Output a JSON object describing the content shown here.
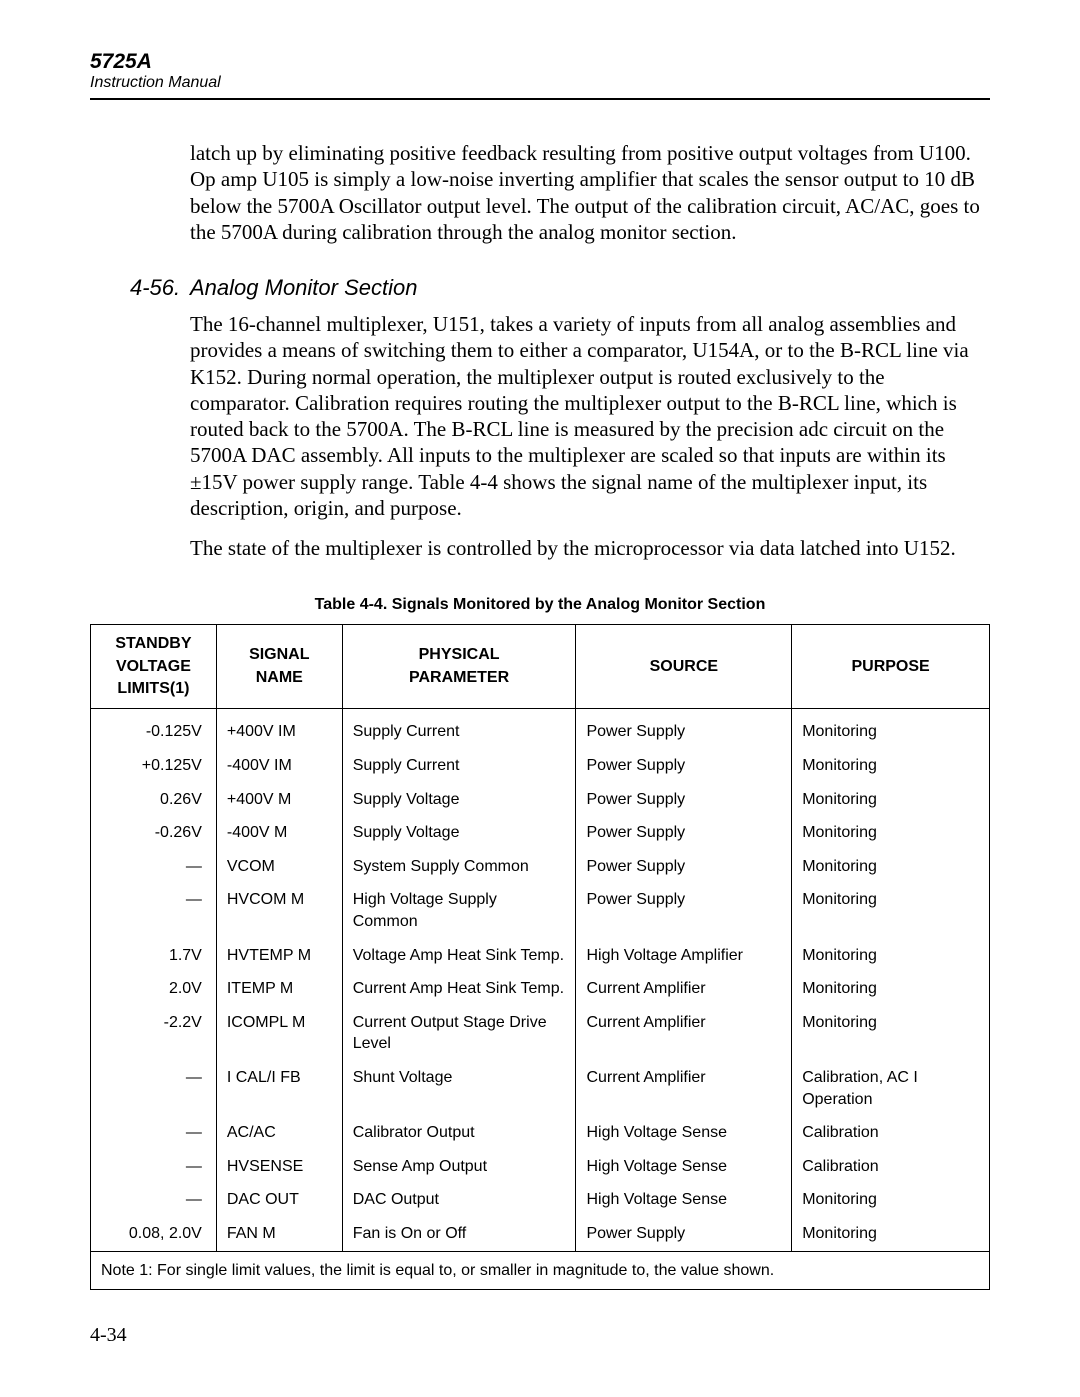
{
  "header": {
    "model": "5725A",
    "manual": "Instruction Manual"
  },
  "intro_para": "latch up by eliminating positive feedback resulting from positive output voltages from U100. Op amp U105 is simply a low-noise inverting amplifier that scales the sensor output to 10 dB below the 5700A Oscillator output level. The output of the calibration circuit, AC/AC, goes to the 5700A during calibration through the analog monitor section.",
  "section": {
    "number": "4-56.",
    "title": "Analog Monitor Section",
    "para1": "The 16-channel multiplexer, U151, takes a variety of inputs from all analog assemblies and provides a means of switching them to either a comparator, U154A, or to the B-RCL line via K152. During normal operation, the multiplexer output is routed exclusively to the comparator. Calibration requires routing the multiplexer output to the B-RCL line, which is routed back to the 5700A. The B-RCL line is measured by the precision adc circuit on the 5700A DAC assembly. All inputs to the multiplexer are scaled so that inputs are within its ±15V power supply range. Table 4-4 shows the signal name of the multiplexer input, its description, origin, and purpose.",
    "para2": "The state of the multiplexer is controlled by the microprocessor via data latched into U152."
  },
  "table": {
    "caption": "Table 4-4. Signals Monitored by the Analog Monitor Section",
    "columns": {
      "c0": "STANDBY VOLTAGE LIMITS(1)",
      "c1": "SIGNAL NAME",
      "c2": "PHYSICAL PARAMETER",
      "c3": "SOURCE",
      "c4": "PURPOSE"
    },
    "col_widths": [
      "14%",
      "14%",
      "26%",
      "24%",
      "22%"
    ],
    "rows": [
      {
        "c0": "-0.125V",
        "c1": "+400V IM",
        "c2": "Supply Current",
        "c3": "Power Supply",
        "c4": "Monitoring"
      },
      {
        "c0": "+0.125V",
        "c1": "-400V IM",
        "c2": "Supply Current",
        "c3": "Power Supply",
        "c4": "Monitoring"
      },
      {
        "c0": "0.26V",
        "c1": "+400V M",
        "c2": "Supply Voltage",
        "c3": "Power Supply",
        "c4": "Monitoring"
      },
      {
        "c0": "-0.26V",
        "c1": "-400V M",
        "c2": "Supply Voltage",
        "c3": "Power Supply",
        "c4": "Monitoring"
      },
      {
        "c0": "—",
        "c1": "VCOM",
        "c2": "System Supply Common",
        "c3": "Power Supply",
        "c4": "Monitoring"
      },
      {
        "c0": "—",
        "c1": "HVCOM M",
        "c2": "High Voltage Supply Common",
        "c3": "Power Supply",
        "c4": "Monitoring"
      },
      {
        "c0": "1.7V",
        "c1": "HVTEMP M",
        "c2": "Voltage Amp Heat Sink Temp.",
        "c3": "High Voltage Amplifier",
        "c4": "Monitoring"
      },
      {
        "c0": "2.0V",
        "c1": "ITEMP M",
        "c2": "Current Amp Heat Sink Temp.",
        "c3": "Current Amplifier",
        "c4": "Monitoring"
      },
      {
        "c0": "-2.2V",
        "c1": "ICOMPL M",
        "c2": "Current Output Stage Drive Level",
        "c3": "Current Amplifier",
        "c4": "Monitoring"
      },
      {
        "c0": "—",
        "c1": "I CAL/I FB",
        "c2": "Shunt Voltage",
        "c3": "Current Amplifier",
        "c4": "Calibration, AC I Operation"
      },
      {
        "c0": "—",
        "c1": "AC/AC",
        "c2": "Calibrator Output",
        "c3": "High Voltage Sense",
        "c4": "Calibration"
      },
      {
        "c0": "—",
        "c1": "HVSENSE",
        "c2": "Sense Amp Output",
        "c3": "High Voltage Sense",
        "c4": "Calibration"
      },
      {
        "c0": "—",
        "c1": "DAC OUT",
        "c2": "DAC Output",
        "c3": "High Voltage Sense",
        "c4": "Monitoring"
      },
      {
        "c0": "0.08, 2.0V",
        "c1": "FAN M",
        "c2": "Fan is On or Off",
        "c3": "Power Supply",
        "c4": "Monitoring"
      }
    ],
    "note": "Note 1: For single limit values, the limit is equal to, or smaller in magnitude to, the value shown."
  },
  "page_number": "4-34"
}
